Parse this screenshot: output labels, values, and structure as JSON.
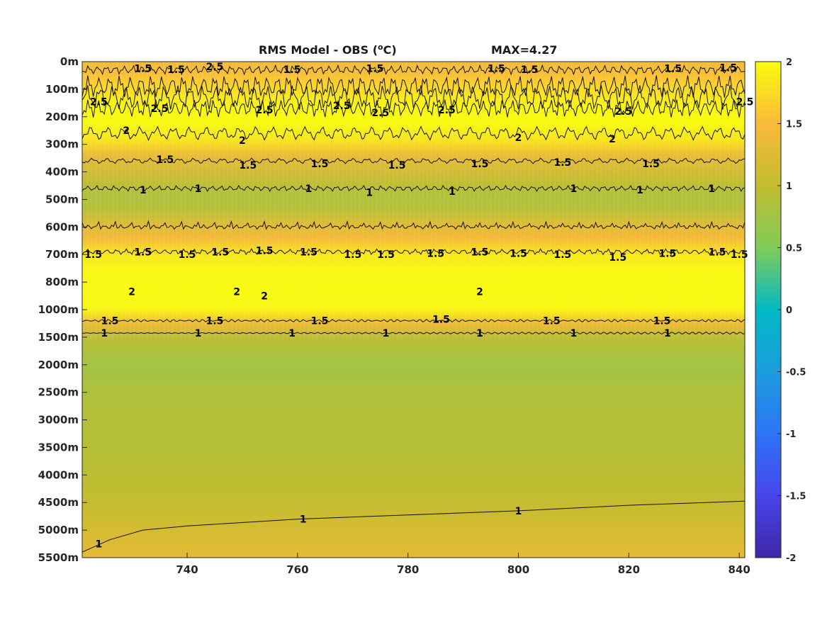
{
  "chart_data": {
    "type": "heatmap",
    "title_left": "RMS Model - OBS (",
    "title_unit_sup": "o",
    "title_unit_tail": "C)",
    "title_right": "MAX=4.27",
    "colormap": "parula",
    "clim": [
      -2,
      2
    ],
    "colorbar_ticks": [
      "2",
      "1.5",
      "1",
      "0.5",
      "0",
      "-0.5",
      "-1",
      "-1.5",
      "-2"
    ],
    "x_ticks": [
      "740",
      "760",
      "780",
      "800",
      "820",
      "840"
    ],
    "x_tick_values": [
      740,
      760,
      780,
      800,
      820,
      840
    ],
    "xlim": [
      721,
      841
    ],
    "y_ticks": [
      "0m",
      "100m",
      "200m",
      "300m",
      "400m",
      "500m",
      "600m",
      "700m",
      "800m",
      "1000m",
      "1500m",
      "2000m",
      "2500m",
      "3000m",
      "3500m",
      "4000m",
      "4500m",
      "5000m",
      "5500m"
    ],
    "y_direction": "down",
    "depth_profile": [
      {
        "level": 0,
        "value": 1.4
      },
      {
        "level": 0.5,
        "value": 1.55
      },
      {
        "level": 1,
        "value": 1.75
      },
      {
        "level": 1.6,
        "value": 1.95
      },
      {
        "level": 2.2,
        "value": 2.0
      },
      {
        "level": 2.9,
        "value": 1.8
      },
      {
        "level": 3.4,
        "value": 1.35
      },
      {
        "level": 4.4,
        "value": 0.98
      },
      {
        "level": 4.8,
        "value": 0.85
      },
      {
        "level": 5.3,
        "value": 0.9
      },
      {
        "level": 5.9,
        "value": 1.25
      },
      {
        "level": 6.4,
        "value": 1.45
      },
      {
        "level": 7.0,
        "value": 1.85
      },
      {
        "level": 7.6,
        "value": 1.98
      },
      {
        "level": 8.4,
        "value": 2.0
      },
      {
        "level": 9.0,
        "value": 1.95
      },
      {
        "level": 9.5,
        "value": 1.4
      },
      {
        "level": 10.0,
        "value": 0.95
      },
      {
        "level": 11.0,
        "value": 0.75
      },
      {
        "level": 12.0,
        "value": 0.86
      },
      {
        "level": 14.0,
        "value": 0.9
      },
      {
        "level": 15.5,
        "value": 0.98
      },
      {
        "level": 16.5,
        "value": 1.1
      },
      {
        "level": 17.5,
        "value": 1.25
      },
      {
        "level": 18.0,
        "value": 1.3
      }
    ],
    "contour_levels": [
      1,
      1.5,
      2,
      2.5
    ],
    "contour_labels": [
      {
        "text": "1.5",
        "x": 732,
        "level": 0.25
      },
      {
        "text": "1.5",
        "x": 738,
        "level": 0.28
      },
      {
        "text": "2.5",
        "x": 745,
        "level": 0.18
      },
      {
        "text": "1.5",
        "x": 759,
        "level": 0.28
      },
      {
        "text": "1.5",
        "x": 774,
        "level": 0.25
      },
      {
        "text": "1.5",
        "x": 796,
        "level": 0.25
      },
      {
        "text": "1.5",
        "x": 802,
        "level": 0.28
      },
      {
        "text": "1.5",
        "x": 828,
        "level": 0.25
      },
      {
        "text": "1.5",
        "x": 838,
        "level": 0.22
      },
      {
        "text": "2.5",
        "x": 724,
        "level": 1.45
      },
      {
        "text": "2.5",
        "x": 735,
        "level": 1.7
      },
      {
        "text": "2.5",
        "x": 754,
        "level": 1.75
      },
      {
        "text": "2.5",
        "x": 768,
        "level": 1.6
      },
      {
        "text": "2.5",
        "x": 775,
        "level": 1.85
      },
      {
        "text": "2.5",
        "x": 787,
        "level": 1.75
      },
      {
        "text": "2.5",
        "x": 819,
        "level": 1.8
      },
      {
        "text": "2.5",
        "x": 841,
        "level": 1.45
      },
      {
        "text": "2",
        "x": 729,
        "level": 2.5
      },
      {
        "text": "2",
        "x": 750,
        "level": 2.85
      },
      {
        "text": "2",
        "x": 800,
        "level": 2.75
      },
      {
        "text": "2",
        "x": 817,
        "level": 2.8
      },
      {
        "text": "1.5",
        "x": 736,
        "level": 3.55
      },
      {
        "text": "1.5",
        "x": 751,
        "level": 3.75
      },
      {
        "text": "1.5",
        "x": 764,
        "level": 3.7
      },
      {
        "text": "1.5",
        "x": 778,
        "level": 3.75
      },
      {
        "text": "1.5",
        "x": 793,
        "level": 3.7
      },
      {
        "text": "1.5",
        "x": 808,
        "level": 3.65
      },
      {
        "text": "1.5",
        "x": 824,
        "level": 3.7
      },
      {
        "text": "1",
        "x": 732,
        "level": 4.65
      },
      {
        "text": "1",
        "x": 742,
        "level": 4.6
      },
      {
        "text": "1",
        "x": 762,
        "level": 4.6
      },
      {
        "text": "1",
        "x": 773,
        "level": 4.75
      },
      {
        "text": "1",
        "x": 788,
        "level": 4.7
      },
      {
        "text": "1",
        "x": 810,
        "level": 4.6
      },
      {
        "text": "1",
        "x": 822,
        "level": 4.65
      },
      {
        "text": "1",
        "x": 835,
        "level": 4.6
      },
      {
        "text": "1.5",
        "x": 723,
        "level": 7.0
      },
      {
        "text": "1.5",
        "x": 732,
        "level": 6.9
      },
      {
        "text": "1.5",
        "x": 740,
        "level": 7.0
      },
      {
        "text": "1.5",
        "x": 746,
        "level": 6.9
      },
      {
        "text": "1.5",
        "x": 754,
        "level": 6.85
      },
      {
        "text": "1.5",
        "x": 762,
        "level": 6.9
      },
      {
        "text": "1.5",
        "x": 770,
        "level": 7.0
      },
      {
        "text": "1.5",
        "x": 776,
        "level": 7.0
      },
      {
        "text": "1.5",
        "x": 785,
        "level": 6.95
      },
      {
        "text": "1.5",
        "x": 793,
        "level": 6.9
      },
      {
        "text": "1.5",
        "x": 800,
        "level": 6.95
      },
      {
        "text": "1.5",
        "x": 808,
        "level": 7.0
      },
      {
        "text": "1.5",
        "x": 818,
        "level": 7.1
      },
      {
        "text": "1.5",
        "x": 827,
        "level": 6.95
      },
      {
        "text": "1.5",
        "x": 836,
        "level": 6.9
      },
      {
        "text": "1.5",
        "x": 840,
        "level": 7.0
      },
      {
        "text": "2",
        "x": 730,
        "level": 8.35
      },
      {
        "text": "2",
        "x": 749,
        "level": 8.35
      },
      {
        "text": "2",
        "x": 754,
        "level": 8.5
      },
      {
        "text": "2",
        "x": 793,
        "level": 8.35
      },
      {
        "text": "1.5",
        "x": 726,
        "level": 9.4
      },
      {
        "text": "1.5",
        "x": 745,
        "level": 9.4
      },
      {
        "text": "1.5",
        "x": 764,
        "level": 9.4
      },
      {
        "text": "1.5",
        "x": 786,
        "level": 9.35
      },
      {
        "text": "1.5",
        "x": 806,
        "level": 9.4
      },
      {
        "text": "1.5",
        "x": 826,
        "level": 9.4
      },
      {
        "text": "1",
        "x": 725,
        "level": 9.85
      },
      {
        "text": "1",
        "x": 742,
        "level": 9.85
      },
      {
        "text": "1",
        "x": 759,
        "level": 9.85
      },
      {
        "text": "1",
        "x": 776,
        "level": 9.85
      },
      {
        "text": "1",
        "x": 793,
        "level": 9.85
      },
      {
        "text": "1",
        "x": 810,
        "level": 9.85
      },
      {
        "text": "1",
        "x": 827,
        "level": 9.85
      },
      {
        "text": "1",
        "x": 724,
        "level": 17.5
      },
      {
        "text": "1",
        "x": 761,
        "level": 16.6
      },
      {
        "text": "1",
        "x": 800,
        "level": 16.3
      }
    ],
    "deep_contour_1": [
      {
        "x": 721,
        "level": 17.8
      },
      {
        "x": 726,
        "level": 17.35
      },
      {
        "x": 732,
        "level": 17.0
      },
      {
        "x": 740,
        "level": 16.85
      },
      {
        "x": 760,
        "level": 16.6
      },
      {
        "x": 780,
        "level": 16.45
      },
      {
        "x": 800,
        "level": 16.3
      },
      {
        "x": 820,
        "level": 16.1
      },
      {
        "x": 841,
        "level": 15.95
      }
    ]
  }
}
